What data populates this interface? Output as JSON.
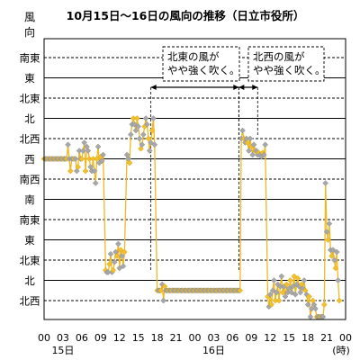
{
  "chart_data": {
    "type": "line",
    "title": "10月15日～16日の風向の推移（日立市役所）",
    "ylabel_chars": [
      "風",
      "向"
    ],
    "y_categories": [
      "南東",
      "東",
      "北東",
      "北",
      "北西",
      "西",
      "南西",
      "南",
      "南東",
      "東",
      "北東",
      "北",
      "北西"
    ],
    "dashed_levels": [
      0,
      2,
      4,
      6,
      8,
      10,
      12
    ],
    "x_tick_labels": [
      "00",
      "03",
      "06",
      "09",
      "12",
      "15",
      "18",
      "21",
      "00",
      "03",
      "06",
      "09",
      "12",
      "15",
      "18",
      "21",
      "00"
    ],
    "x_tick_hours": [
      0,
      3,
      6,
      9,
      12,
      15,
      18,
      21,
      24,
      27,
      30,
      33,
      36,
      39,
      42,
      45,
      48
    ],
    "x_day_labels": [
      {
        "hour": 3,
        "label": "15日"
      },
      {
        "hour": 27,
        "label": "16日"
      }
    ],
    "x_unit": "(時)",
    "x_range": [
      0,
      48
    ],
    "annotations": [
      {
        "text_lines": [
          "北東の風が",
          "やや強く吹く。"
        ],
        "from_hour": 17,
        "to_hour": 31
      },
      {
        "text_lines": [
          "北西の風が",
          "やや強く吹く。"
        ],
        "from_hour": 31,
        "to_hour": 34
      }
    ],
    "series": [
      {
        "name": "",
        "points": [
          [
            0.0,
            5
          ],
          [
            0.2,
            5
          ],
          [
            0.4,
            5
          ],
          [
            0.6,
            5
          ],
          [
            0.8,
            5
          ],
          [
            1.0,
            5
          ],
          [
            1.2,
            5
          ],
          [
            1.4,
            5
          ],
          [
            1.6,
            5
          ],
          [
            1.8,
            5
          ],
          [
            2.0,
            5
          ],
          [
            2.2,
            5
          ],
          [
            2.4,
            5
          ],
          [
            2.6,
            5
          ],
          [
            2.8,
            5
          ],
          [
            3.0,
            5
          ],
          [
            3.2,
            5
          ],
          [
            3.4,
            5
          ],
          [
            3.6,
            5
          ],
          [
            3.8,
            4.3
          ],
          [
            4.0,
            5
          ],
          [
            4.2,
            5.6
          ],
          [
            4.4,
            5
          ],
          [
            4.6,
            5
          ],
          [
            4.8,
            5
          ],
          [
            5.0,
            5
          ],
          [
            5.2,
            5.6
          ],
          [
            5.4,
            5.4
          ],
          [
            5.6,
            4.6
          ],
          [
            5.8,
            5
          ],
          [
            6.0,
            5
          ],
          [
            6.2,
            4.6
          ],
          [
            6.4,
            4.2
          ],
          [
            6.6,
            5.6
          ],
          [
            6.8,
            4.4
          ],
          [
            7.0,
            4.6
          ],
          [
            7.2,
            5
          ],
          [
            7.4,
            5.4
          ],
          [
            7.6,
            5.6
          ],
          [
            7.8,
            5
          ],
          [
            8.0,
            5.6
          ],
          [
            8.2,
            6.2
          ],
          [
            8.4,
            5
          ],
          [
            8.6,
            4.4
          ],
          [
            8.8,
            5.2
          ],
          [
            9.0,
            4.9
          ],
          [
            9.2,
            5.1
          ],
          [
            9.4,
            4.8
          ],
          [
            9.8,
            10.5
          ],
          [
            10.0,
            10.6
          ],
          [
            10.2,
            10.6
          ],
          [
            10.4,
            10.2
          ],
          [
            10.6,
            9.7
          ],
          [
            10.8,
            10.6
          ],
          [
            11.0,
            10.5
          ],
          [
            11.2,
            10.1
          ],
          [
            11.4,
            9.6
          ],
          [
            11.6,
            9.8
          ],
          [
            11.8,
            9.2
          ],
          [
            12.0,
            10.4
          ],
          [
            12.2,
            9.5
          ],
          [
            12.4,
            9.8
          ],
          [
            12.6,
            10.3
          ],
          [
            12.8,
            9.6
          ],
          [
            13.2,
            4.8
          ],
          [
            13.4,
            5
          ],
          [
            13.6,
            5.2
          ],
          [
            13.8,
            3.8
          ],
          [
            14.0,
            3.3
          ],
          [
            14.2,
            3.0
          ],
          [
            14.4,
            3.3
          ],
          [
            14.6,
            3.6
          ],
          [
            14.8,
            3.0
          ],
          [
            15.0,
            3.4
          ],
          [
            15.2,
            4.0
          ],
          [
            15.4,
            4.5
          ],
          [
            15.6,
            4.3
          ],
          [
            15.8,
            3.8
          ],
          [
            16.0,
            3.4
          ],
          [
            16.2,
            3.0
          ],
          [
            16.4,
            3.3
          ],
          [
            16.6,
            4.0
          ],
          [
            16.8,
            4.6
          ],
          [
            17.0,
            4.2
          ],
          [
            17.2,
            3.6
          ],
          [
            17.4,
            3.0
          ],
          [
            17.6,
            4.3
          ],
          [
            18.0,
            11.5
          ],
          [
            18.2,
            11.5
          ],
          [
            18.4,
            11.5
          ],
          [
            18.6,
            11.5
          ],
          [
            18.8,
            11.2
          ],
          [
            19.0,
            12.0
          ],
          [
            19.2,
            11.3
          ],
          [
            19.4,
            11.5
          ],
          [
            19.6,
            11.5
          ],
          [
            19.8,
            11.5
          ],
          [
            20.0,
            11.5
          ],
          [
            20.2,
            11.5
          ],
          [
            20.4,
            11.5
          ],
          [
            20.6,
            11.5
          ],
          [
            20.8,
            11.5
          ],
          [
            21.0,
            11.5
          ],
          [
            21.2,
            11.5
          ],
          [
            21.4,
            11.5
          ],
          [
            21.6,
            11.5
          ],
          [
            21.8,
            11.5
          ],
          [
            22.0,
            11.5
          ],
          [
            22.2,
            11.5
          ],
          [
            22.4,
            11.5
          ],
          [
            22.6,
            11.5
          ],
          [
            22.8,
            11.5
          ],
          [
            23.0,
            11.5
          ],
          [
            23.2,
            11.5
          ],
          [
            23.4,
            11.5
          ],
          [
            23.6,
            11.5
          ],
          [
            23.8,
            11.5
          ],
          [
            24.0,
            11.5
          ],
          [
            24.2,
            11.5
          ],
          [
            24.4,
            11.5
          ],
          [
            24.6,
            11.5
          ],
          [
            24.8,
            11.5
          ],
          [
            25.0,
            11.5
          ],
          [
            25.2,
            11.5
          ],
          [
            25.4,
            11.5
          ],
          [
            25.6,
            11.5
          ],
          [
            25.8,
            11.5
          ],
          [
            26.0,
            11.5
          ],
          [
            26.2,
            11.5
          ],
          [
            26.4,
            11.5
          ],
          [
            26.6,
            11.5
          ],
          [
            26.8,
            11.5
          ],
          [
            27.0,
            11.5
          ],
          [
            27.2,
            11.5
          ],
          [
            27.4,
            11.5
          ],
          [
            27.6,
            11.5
          ],
          [
            27.8,
            11.5
          ],
          [
            28.0,
            11.5
          ],
          [
            28.2,
            11.5
          ],
          [
            28.4,
            11.5
          ],
          [
            28.6,
            11.5
          ],
          [
            28.8,
            11.5
          ],
          [
            29.0,
            11.5
          ],
          [
            29.2,
            11.5
          ],
          [
            29.4,
            11.5
          ],
          [
            29.6,
            11.5
          ],
          [
            29.8,
            11.5
          ],
          [
            30.0,
            11.5
          ],
          [
            30.2,
            11.5
          ],
          [
            30.4,
            11.5
          ],
          [
            30.6,
            11.5
          ],
          [
            30.8,
            11.5
          ],
          [
            31.0,
            11.5
          ],
          [
            31.2,
            11.5
          ],
          [
            31.4,
            4.0
          ],
          [
            31.6,
            3.6
          ],
          [
            31.8,
            4.0
          ],
          [
            32.0,
            4.2
          ],
          [
            32.2,
            4.0
          ],
          [
            32.4,
            4.2
          ],
          [
            32.6,
            4.6
          ],
          [
            32.8,
            4.0
          ],
          [
            33.0,
            4.4
          ],
          [
            33.2,
            4.8
          ],
          [
            33.4,
            4.3
          ],
          [
            33.6,
            4.6
          ],
          [
            33.8,
            4.6
          ],
          [
            34.0,
            4.8
          ],
          [
            34.2,
            4.7
          ],
          [
            34.4,
            4.8
          ],
          [
            34.6,
            4.9
          ],
          [
            34.8,
            4.7
          ],
          [
            35.0,
            4.8
          ],
          [
            35.2,
            4.3
          ],
          [
            35.6,
            11.8
          ],
          [
            35.8,
            12.3
          ],
          [
            36.0,
            11.7
          ],
          [
            36.2,
            12.2
          ],
          [
            36.4,
            11.5
          ],
          [
            36.6,
            11.0
          ],
          [
            36.8,
            12.0
          ],
          [
            37.0,
            11.6
          ],
          [
            37.2,
            11.2
          ],
          [
            37.4,
            12.0
          ],
          [
            37.6,
            11.3
          ],
          [
            37.8,
            10.8
          ],
          [
            38.0,
            11.6
          ],
          [
            38.2,
            11.3
          ],
          [
            38.4,
            11.8
          ],
          [
            38.6,
            11.2
          ],
          [
            38.8,
            11.6
          ],
          [
            39.0,
            11.4
          ],
          [
            39.2,
            11.0
          ],
          [
            39.4,
            11.6
          ],
          [
            39.6,
            11.3
          ],
          [
            39.8,
            10.8
          ],
          [
            40.0,
            11.7
          ],
          [
            40.2,
            11.2
          ],
          [
            40.4,
            10.9
          ],
          [
            40.6,
            11.3
          ],
          [
            40.8,
            11.6
          ],
          [
            41.0,
            11.2
          ],
          [
            41.2,
            11.4
          ],
          [
            41.4,
            11.0
          ],
          [
            41.6,
            11.5
          ],
          [
            41.8,
            11.7
          ],
          [
            42.0,
            12.2
          ],
          [
            42.2,
            11.8
          ],
          [
            42.4,
            12.8
          ],
          [
            42.6,
            12.4
          ],
          [
            42.8,
            12.0
          ],
          [
            43.0,
            12.2
          ],
          [
            43.2,
            12.4
          ],
          [
            43.4,
            12.8
          ],
          [
            43.6,
            12.8
          ],
          [
            43.8,
            12.8
          ],
          [
            44.0,
            12.8
          ],
          [
            44.2,
            12.8
          ],
          [
            44.4,
            12.8
          ],
          [
            44.6,
            12.2
          ],
          [
            44.8,
            6.2
          ],
          [
            45.0,
            8.6
          ],
          [
            45.2,
            9.0
          ],
          [
            45.4,
            8.2
          ],
          [
            45.6,
            9.5
          ],
          [
            45.8,
            9.8
          ],
          [
            46.0,
            9.5
          ],
          [
            46.2,
            10.0
          ],
          [
            46.4,
            10.4
          ],
          [
            46.6,
            9.6
          ],
          [
            46.8,
            11.0
          ],
          [
            47.0,
            12.0
          ]
        ]
      }
    ]
  }
}
